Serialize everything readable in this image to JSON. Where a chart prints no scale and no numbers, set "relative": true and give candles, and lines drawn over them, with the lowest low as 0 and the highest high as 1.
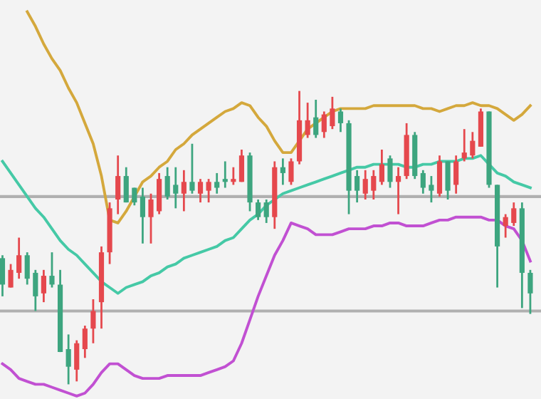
{
  "chart_data": {
    "type": "candlestick",
    "relative": true,
    "categories": [
      null,
      null,
      null,
      null,
      null,
      null,
      null,
      null,
      null,
      null,
      null,
      null,
      null,
      null,
      null,
      null,
      null,
      null,
      null,
      null,
      null,
      null,
      null,
      null,
      null,
      null,
      null,
      null,
      null,
      null,
      null,
      null,
      null,
      null,
      null,
      null,
      null,
      null,
      null,
      null,
      null,
      null,
      null,
      null,
      null,
      null,
      null,
      null,
      null,
      null,
      null,
      null,
      null,
      null,
      null,
      null,
      null,
      null,
      null,
      null,
      null,
      null,
      null,
      null,
      null
    ],
    "ohlc": [
      [
        0.43,
        0.44,
        0.3,
        0.34
      ],
      [
        0.33,
        0.41,
        0.33,
        0.39
      ],
      [
        0.38,
        0.5,
        0.36,
        0.44
      ],
      [
        0.44,
        0.45,
        0.34,
        0.36
      ],
      [
        0.38,
        0.39,
        0.25,
        0.3
      ],
      [
        0.31,
        0.39,
        0.28,
        0.37
      ],
      [
        0.37,
        0.45,
        0.33,
        0.34
      ],
      [
        0.34,
        0.39,
        0.11,
        0.11
      ],
      [
        0.12,
        0.17,
        0,
        0.06
      ],
      [
        0.05,
        0.15,
        0.01,
        0.14
      ],
      [
        0.12,
        0.2,
        0.09,
        0.19
      ],
      [
        0.19,
        0.29,
        0.14,
        0.25
      ],
      [
        0.28,
        0.47,
        0.19,
        0.45
      ],
      [
        0.45,
        0.62,
        0.41,
        0.6
      ],
      [
        0.63,
        0.78,
        0.58,
        0.71
      ],
      [
        0.71,
        0.74,
        0.62,
        0.62
      ],
      [
        0.67,
        0.67,
        0.61,
        0.62
      ],
      [
        0.64,
        0.67,
        0.48,
        0.57
      ],
      [
        0.57,
        0.65,
        0.48,
        0.63
      ],
      [
        0.59,
        0.72,
        0.58,
        0.7
      ],
      [
        0.71,
        0.74,
        0.63,
        0.64
      ],
      [
        0.68,
        0.74,
        0.6,
        0.65
      ],
      [
        0.65,
        0.73,
        0.59,
        0.69
      ],
      [
        0.69,
        0.82,
        0.65,
        0.66
      ],
      [
        0.65,
        0.7,
        0.62,
        0.69
      ],
      [
        0.66,
        0.7,
        0.62,
        0.69
      ],
      [
        0.69,
        0.72,
        0.65,
        0.67
      ],
      [
        0.7,
        0.76,
        0.67,
        0.69
      ],
      [
        0.69,
        0.74,
        0.68,
        0.7
      ],
      [
        0.69,
        0.8,
        0.69,
        0.78
      ],
      [
        0.78,
        0.79,
        0.59,
        0.62
      ],
      [
        0.62,
        0.63,
        0.56,
        0.57
      ],
      [
        0.62,
        0.63,
        0.55,
        0.57
      ],
      [
        0.57,
        0.76,
        0.53,
        0.74
      ],
      [
        0.74,
        0.77,
        0.68,
        0.72
      ],
      [
        0.69,
        0.77,
        0.68,
        0.76
      ],
      [
        0.76,
        1.0,
        0.75,
        0.9
      ],
      [
        0.85,
        0.96,
        0.84,
        0.9
      ],
      [
        0.91,
        0.97,
        0.84,
        0.85
      ],
      [
        0.86,
        0.93,
        0.84,
        0.92
      ],
      [
        0.88,
        0.98,
        0.87,
        0.94
      ],
      [
        0.93,
        0.94,
        0.86,
        0.89
      ],
      [
        0.89,
        0.9,
        0.58,
        0.66
      ],
      [
        0.71,
        0.73,
        0.62,
        0.66
      ],
      [
        0.65,
        0.73,
        0.63,
        0.7
      ],
      [
        0.66,
        0.73,
        0.63,
        0.71
      ],
      [
        0.69,
        0.8,
        0.68,
        0.75
      ],
      [
        0.77,
        0.78,
        0.67,
        0.69
      ],
      [
        0.69,
        0.74,
        0.58,
        0.71
      ],
      [
        0.71,
        0.89,
        0.7,
        0.85
      ],
      [
        0.85,
        0.86,
        0.7,
        0.71
      ],
      [
        0.72,
        0.73,
        0.65,
        0.67
      ],
      [
        0.68,
        0.71,
        0.62,
        0.66
      ],
      [
        0.65,
        0.78,
        0.64,
        0.76
      ],
      [
        0.76,
        0.76,
        0.63,
        0.66
      ],
      [
        0.68,
        0.78,
        0.65,
        0.76
      ],
      [
        0.77,
        0.87,
        0.76,
        0.79
      ],
      [
        0.78,
        0.86,
        0.77,
        0.83
      ],
      [
        0.81,
        0.94,
        0.81,
        0.93
      ],
      [
        0.93,
        0.93,
        0.67,
        0.68
      ],
      [
        0.68,
        0.68,
        0.33,
        0.47
      ],
      [
        0.54,
        0.58,
        0.5,
        0.57
      ],
      [
        0.55,
        0.62,
        0.54,
        0.6
      ],
      [
        0.6,
        0.62,
        0.26,
        0.38
      ],
      [
        0.38,
        0.39,
        0.24,
        0.31
      ]
    ],
    "colors": [
      "#3da57f",
      "#e5484d",
      "#e5484d",
      "#3da57f",
      "#3da57f",
      "#e5484d",
      "#3da57f",
      "#3da57f",
      "#3da57f",
      "#e5484d",
      "#e5484d",
      "#e5484d",
      "#e5484d",
      "#e5484d",
      "#e5484d",
      "#3da57f",
      "#3da57f",
      "#3da57f",
      "#e5484d",
      "#e5484d",
      "#3da57f",
      "#3da57f",
      "#e5484d",
      "#3da57f",
      "#e5484d",
      "#e5484d",
      "#3da57f",
      "#3da57f",
      "#e5484d",
      "#e5484d",
      "#3da57f",
      "#3da57f",
      "#3da57f",
      "#e5484d",
      "#3da57f",
      "#e5484d",
      "#e5484d",
      "#e5484d",
      "#3da57f",
      "#e5484d",
      "#e5484d",
      "#3da57f",
      "#3da57f",
      "#3da57f",
      "#e5484d",
      "#e5484d",
      "#e5484d",
      "#3da57f",
      "#e5484d",
      "#e5484d",
      "#3da57f",
      "#3da57f",
      "#3da57f",
      "#e5484d",
      "#3da57f",
      "#e5484d",
      "#e5484d",
      "#e5484d",
      "#e5484d",
      "#3da57f",
      "#3da57f",
      "#e5484d",
      "#e5484d",
      "#3da57f",
      "#3da57f"
    ],
    "series": [
      {
        "type": "line",
        "color": "#d4a83c",
        "values": [
          null,
          null,
          null,
          1.27,
          1.22,
          1.16,
          1.11,
          1.07,
          1.01,
          0.96,
          0.89,
          0.82,
          0.71,
          0.56,
          0.55,
          0.59,
          0.64,
          0.69,
          0.71,
          0.74,
          0.76,
          0.8,
          0.82,
          0.85,
          0.87,
          0.89,
          0.91,
          0.93,
          0.94,
          0.96,
          0.95,
          0.91,
          0.88,
          0.83,
          0.79,
          0.79,
          0.83,
          0.87,
          0.89,
          0.91,
          0.93,
          0.94,
          0.94,
          0.94,
          0.94,
          0.95,
          0.95,
          0.95,
          0.95,
          0.95,
          0.95,
          0.94,
          0.94,
          0.93,
          0.94,
          0.95,
          0.95,
          0.96,
          0.95,
          0.95,
          0.94,
          0.92,
          0.9,
          0.92,
          0.95
        ]
      },
      {
        "type": "line",
        "color": "#45c9a6",
        "values": [
          0.76,
          0.72,
          0.68,
          0.64,
          0.6,
          0.57,
          0.53,
          0.49,
          0.46,
          0.44,
          0.41,
          0.38,
          0.35,
          0.33,
          0.31,
          0.33,
          0.34,
          0.35,
          0.37,
          0.38,
          0.4,
          0.41,
          0.43,
          0.44,
          0.45,
          0.46,
          0.47,
          0.49,
          0.5,
          0.53,
          0.56,
          0.58,
          0.61,
          0.63,
          0.65,
          0.66,
          0.67,
          0.68,
          0.69,
          0.7,
          0.71,
          0.72,
          0.73,
          0.74,
          0.74,
          0.75,
          0.75,
          0.75,
          0.75,
          0.74,
          0.74,
          0.75,
          0.75,
          0.76,
          0.76,
          0.76,
          0.77,
          0.77,
          0.78,
          0.75,
          0.72,
          0.71,
          0.69,
          0.68,
          0.67
        ]
      },
      {
        "type": "line",
        "color": "#c150d2",
        "values": [
          0.07,
          0.05,
          0.02,
          0.01,
          0.0,
          0.0,
          -0.01,
          -0.02,
          -0.03,
          -0.04,
          -0.03,
          0.0,
          0.04,
          0.07,
          0.07,
          0.05,
          0.03,
          0.02,
          0.02,
          0.02,
          0.03,
          0.03,
          0.03,
          0.03,
          0.03,
          0.04,
          0.05,
          0.06,
          0.08,
          0.14,
          0.22,
          0.3,
          0.37,
          0.44,
          0.49,
          0.55,
          0.54,
          0.53,
          0.51,
          0.51,
          0.51,
          0.52,
          0.53,
          0.53,
          0.53,
          0.54,
          0.54,
          0.55,
          0.55,
          0.54,
          0.54,
          0.54,
          0.55,
          0.56,
          0.56,
          0.57,
          0.57,
          0.57,
          0.57,
          0.56,
          0.56,
          0.54,
          0.53,
          0.49,
          0.42
        ]
      }
    ],
    "ref_lines": [
      {
        "axis": "y",
        "value": 0.64,
        "color": "#b0b0b0"
      },
      {
        "axis": "y",
        "value": 0.25,
        "color": "#b0b0b0"
      }
    ]
  }
}
